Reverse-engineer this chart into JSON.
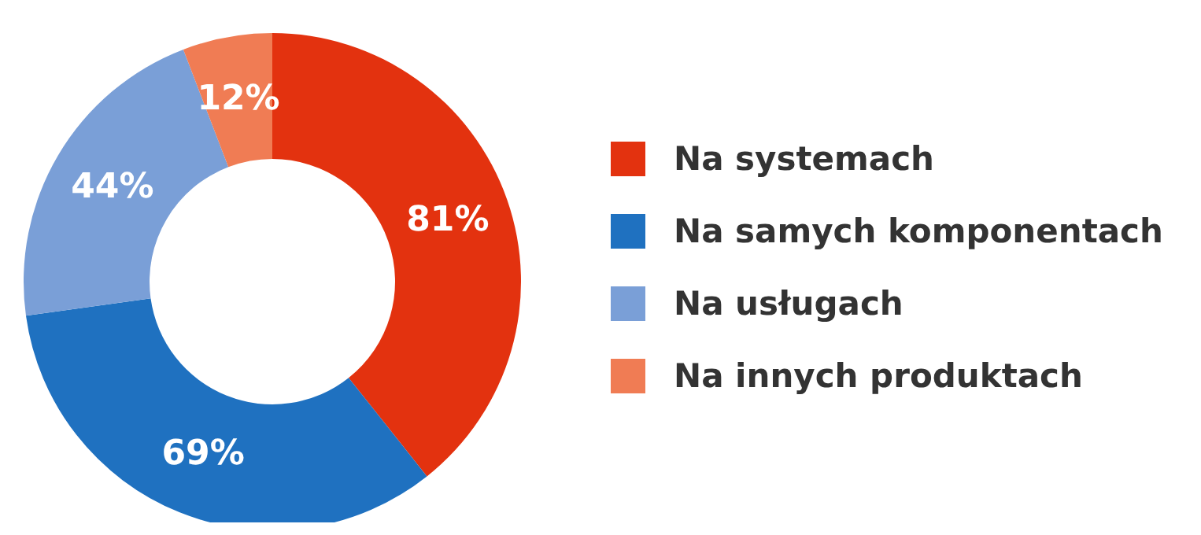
{
  "chart_data": {
    "type": "donut",
    "categories": [
      "Na systemach",
      "Na samych komponentach",
      "Na usługach",
      "Na innych produktach"
    ],
    "values": [
      81,
      69,
      44,
      12
    ],
    "colors": [
      "#e3320f",
      "#1f71c0",
      "#7a9fd7",
      "#f07c54"
    ],
    "value_labels": [
      "81%",
      "69%",
      "44%",
      "12%"
    ],
    "legend": "right"
  }
}
